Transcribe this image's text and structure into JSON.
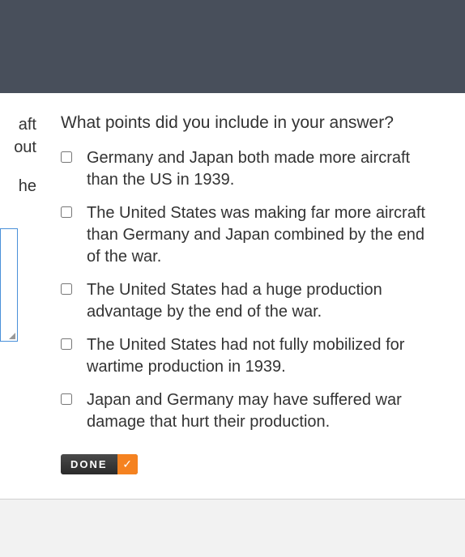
{
  "header": {
    "title_fragment": ""
  },
  "left_panel": {
    "text_line_1a": "aft",
    "text_line_1b": "out",
    "text_line_2": "he"
  },
  "question": {
    "title": "What points did you include in your answer?",
    "items": [
      {
        "text": "Germany and Japan both made more aircraft than the US in 1939.",
        "checked": false
      },
      {
        "text": "The United States was making far more aircraft than Germany and Japan combined by the end of the war.",
        "checked": false
      },
      {
        "text": "The United States had a huge production advantage by the end of the war.",
        "checked": false
      },
      {
        "text": "The United States had not fully mobilized for wartime production in 1939.",
        "checked": false
      },
      {
        "text": "Japan and Germany may have suffered war damage that hurt their production.",
        "checked": false
      }
    ]
  },
  "done_button": {
    "label": "DONE"
  },
  "colors": {
    "header_bg": "#484f5b",
    "text": "#333333",
    "textarea_border": "#4a90d9",
    "done_bg_orange": "#f58220",
    "footer_border": "#d0d0d0",
    "footer_bg": "#f2f2f2"
  }
}
